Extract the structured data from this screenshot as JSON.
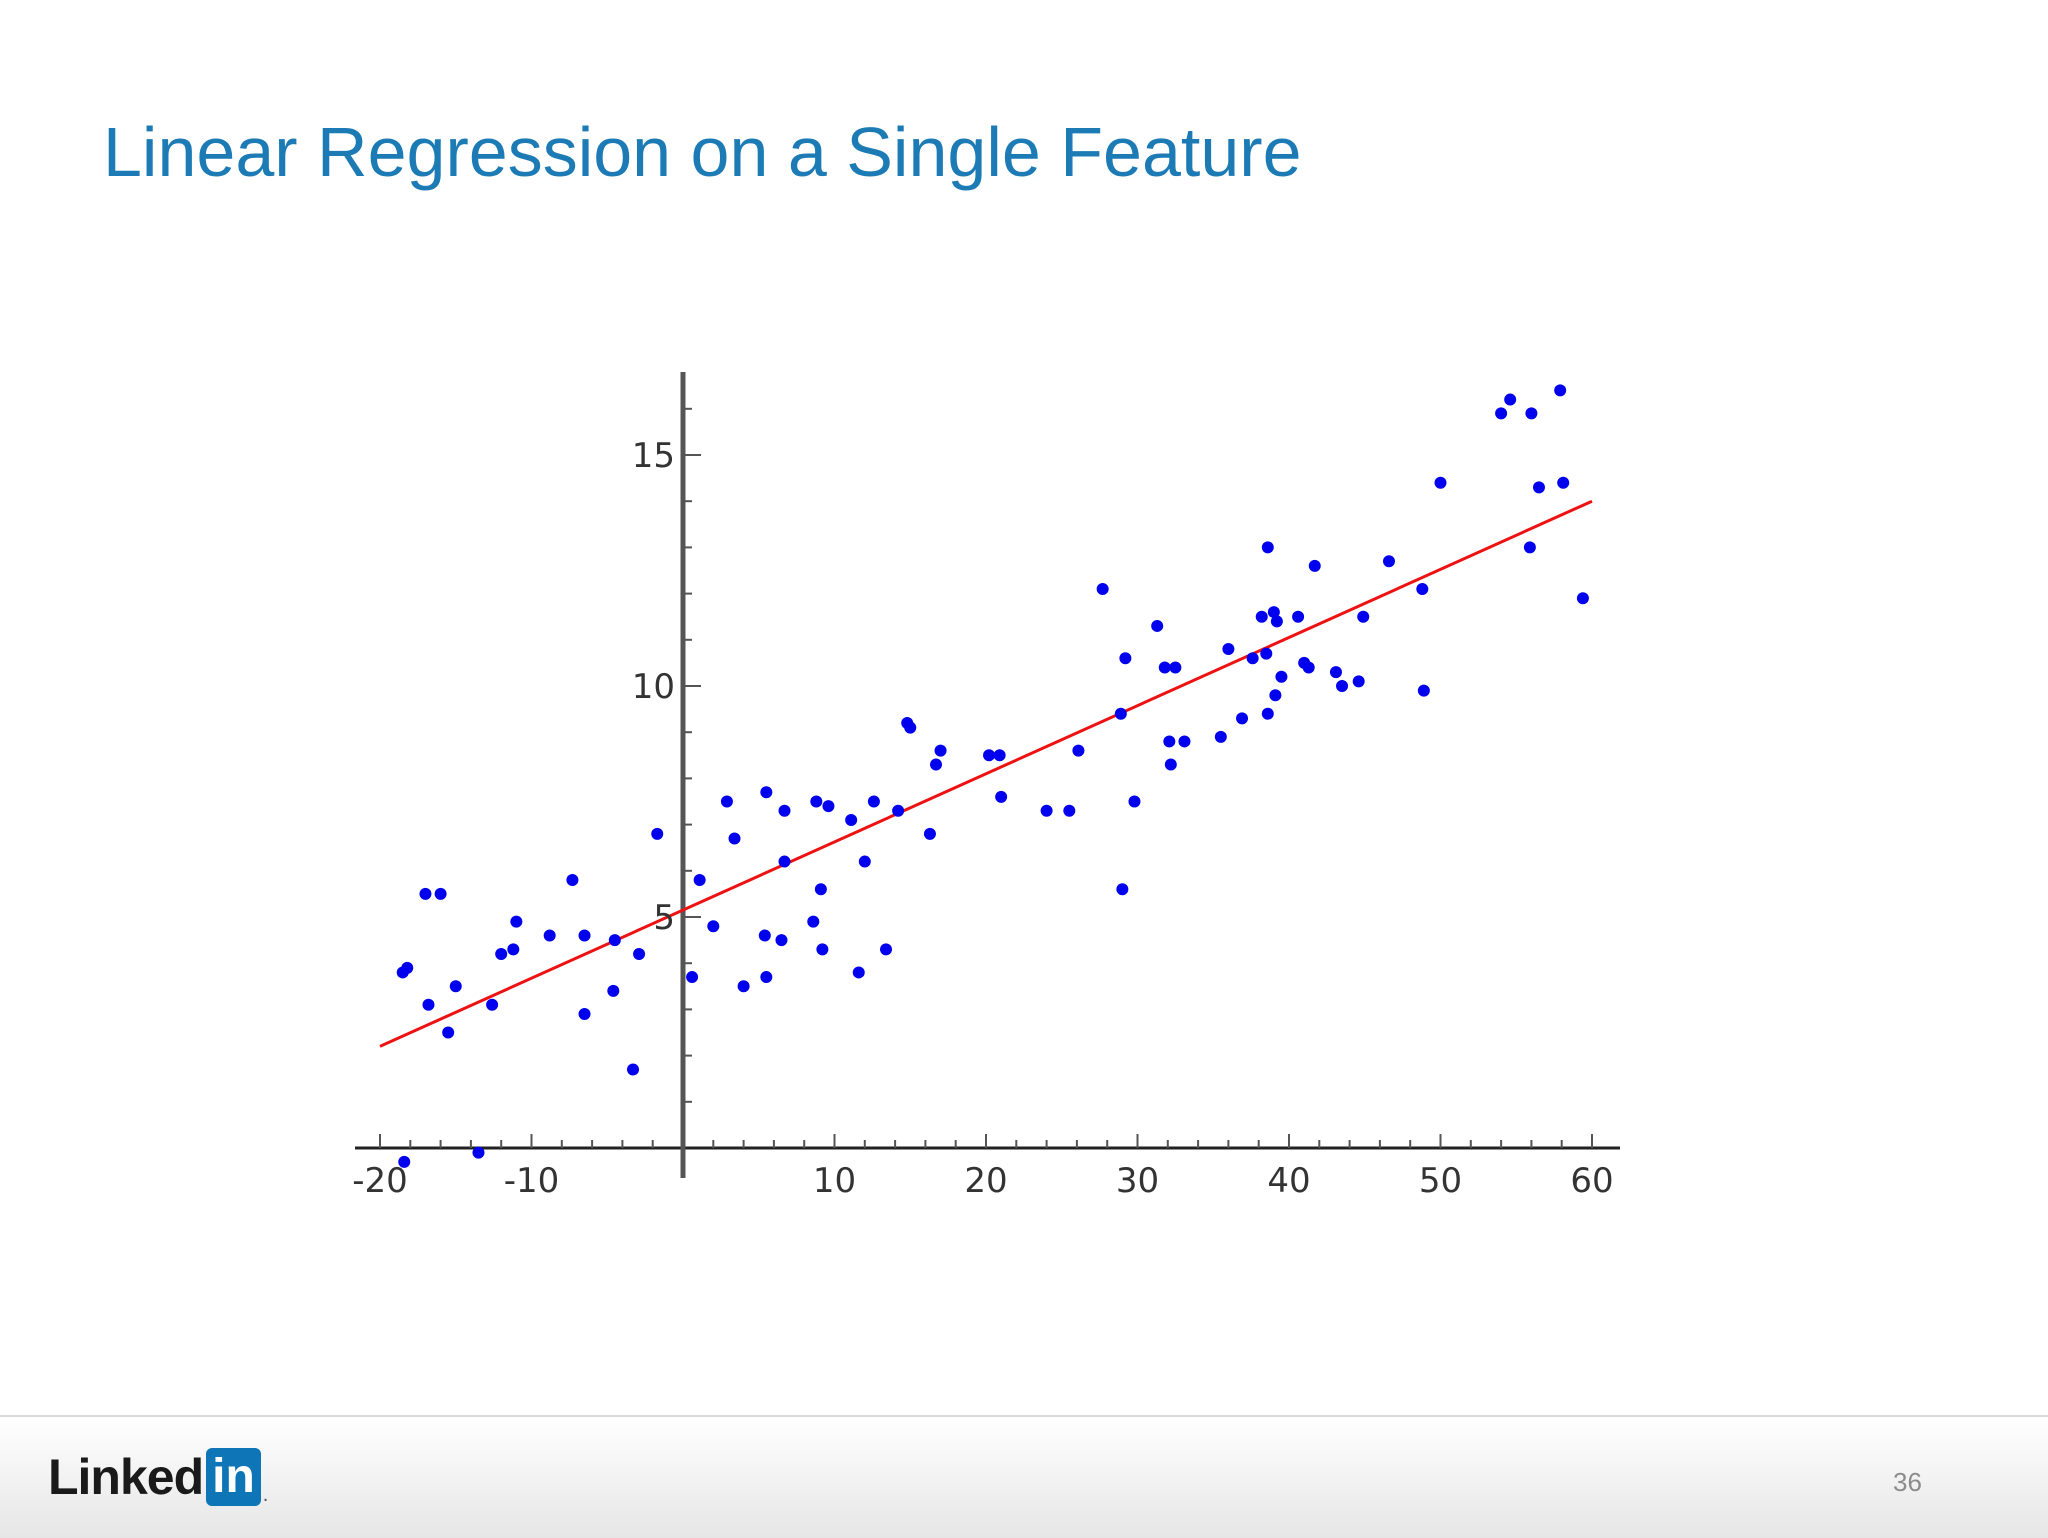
{
  "slide": {
    "title": "Linear Regression on a Single Feature",
    "page_number": "36",
    "logo": {
      "word": "Linked",
      "box": "in",
      "dot": "."
    }
  },
  "colors": {
    "title": "#1c7bb5",
    "points": "#0000ee",
    "line": "#ee1111",
    "axis": "#555555"
  },
  "chart_data": {
    "type": "scatter",
    "title": "",
    "xlabel": "",
    "ylabel": "",
    "xlim": [
      -20,
      60
    ],
    "ylim": [
      0,
      17
    ],
    "x_ticks": [
      -20,
      -10,
      10,
      20,
      30,
      40,
      50,
      60
    ],
    "x_tick_labels": [
      "-20",
      "-10",
      "10",
      "20",
      "30",
      "40",
      "50",
      "60"
    ],
    "y_ticks": [
      5,
      10,
      15
    ],
    "y_tick_labels": [
      "5",
      "10",
      "15"
    ],
    "grid": false,
    "regression_line": {
      "x": [
        -20,
        60
      ],
      "y": [
        2.2,
        14.0
      ]
    },
    "points": [
      [
        -18.5,
        3.8
      ],
      [
        -18.2,
        3.9
      ],
      [
        -18.4,
        -0.3
      ],
      [
        -17.0,
        5.5
      ],
      [
        -16.8,
        3.1
      ],
      [
        -16.0,
        5.5
      ],
      [
        -15.5,
        2.5
      ],
      [
        -15.0,
        3.5
      ],
      [
        -13.5,
        -0.1
      ],
      [
        -12.6,
        3.1
      ],
      [
        -12.0,
        4.2
      ],
      [
        -11.2,
        4.3
      ],
      [
        -11.0,
        4.9
      ],
      [
        -8.8,
        4.6
      ],
      [
        -7.3,
        5.8
      ],
      [
        -6.5,
        4.6
      ],
      [
        -6.5,
        2.9
      ],
      [
        -4.6,
        3.4
      ],
      [
        -4.5,
        4.5
      ],
      [
        -3.3,
        1.7
      ],
      [
        -2.9,
        4.2
      ],
      [
        -1.7,
        6.8
      ],
      [
        0.6,
        3.7
      ],
      [
        1.1,
        5.8
      ],
      [
        2.0,
        4.8
      ],
      [
        2.9,
        7.5
      ],
      [
        3.4,
        6.7
      ],
      [
        4.0,
        3.5
      ],
      [
        5.4,
        4.6
      ],
      [
        5.5,
        3.7
      ],
      [
        5.5,
        7.7
      ],
      [
        6.5,
        4.5
      ],
      [
        6.7,
        7.3
      ],
      [
        6.7,
        6.2
      ],
      [
        8.6,
        4.9
      ],
      [
        8.8,
        7.5
      ],
      [
        9.1,
        5.6
      ],
      [
        9.2,
        4.3
      ],
      [
        9.6,
        7.4
      ],
      [
        11.1,
        7.1
      ],
      [
        11.6,
        3.8
      ],
      [
        12.0,
        6.2
      ],
      [
        12.6,
        7.5
      ],
      [
        13.4,
        4.3
      ],
      [
        14.2,
        7.3
      ],
      [
        14.8,
        9.2
      ],
      [
        15.0,
        9.1
      ],
      [
        16.3,
        6.8
      ],
      [
        16.7,
        8.3
      ],
      [
        17.0,
        8.6
      ],
      [
        20.2,
        8.5
      ],
      [
        20.9,
        8.5
      ],
      [
        21.0,
        7.6
      ],
      [
        24.0,
        7.3
      ],
      [
        25.5,
        7.3
      ],
      [
        26.1,
        8.6
      ],
      [
        27.7,
        12.1
      ],
      [
        28.9,
        9.4
      ],
      [
        29.0,
        5.6
      ],
      [
        29.2,
        10.6
      ],
      [
        29.8,
        7.5
      ],
      [
        31.3,
        11.3
      ],
      [
        31.8,
        10.4
      ],
      [
        32.1,
        8.8
      ],
      [
        32.2,
        8.3
      ],
      [
        32.5,
        10.4
      ],
      [
        33.1,
        8.8
      ],
      [
        35.5,
        8.9
      ],
      [
        36.0,
        10.8
      ],
      [
        36.9,
        9.3
      ],
      [
        37.6,
        10.6
      ],
      [
        38.2,
        11.5
      ],
      [
        38.5,
        10.7
      ],
      [
        38.6,
        13.0
      ],
      [
        38.6,
        9.4
      ],
      [
        39.0,
        11.6
      ],
      [
        39.1,
        9.8
      ],
      [
        39.2,
        11.4
      ],
      [
        39.5,
        10.2
      ],
      [
        40.6,
        11.5
      ],
      [
        41.0,
        10.5
      ],
      [
        41.3,
        10.4
      ],
      [
        41.7,
        12.6
      ],
      [
        43.1,
        10.3
      ],
      [
        43.5,
        10.0
      ],
      [
        44.6,
        10.1
      ],
      [
        44.9,
        11.5
      ],
      [
        46.6,
        12.7
      ],
      [
        48.8,
        12.1
      ],
      [
        48.9,
        9.9
      ],
      [
        50.0,
        14.4
      ],
      [
        54.0,
        15.9
      ],
      [
        54.6,
        16.2
      ],
      [
        55.9,
        13.0
      ],
      [
        56.0,
        15.9
      ],
      [
        56.5,
        14.3
      ],
      [
        57.9,
        16.4
      ],
      [
        58.1,
        14.4
      ],
      [
        59.4,
        11.9
      ]
    ]
  }
}
